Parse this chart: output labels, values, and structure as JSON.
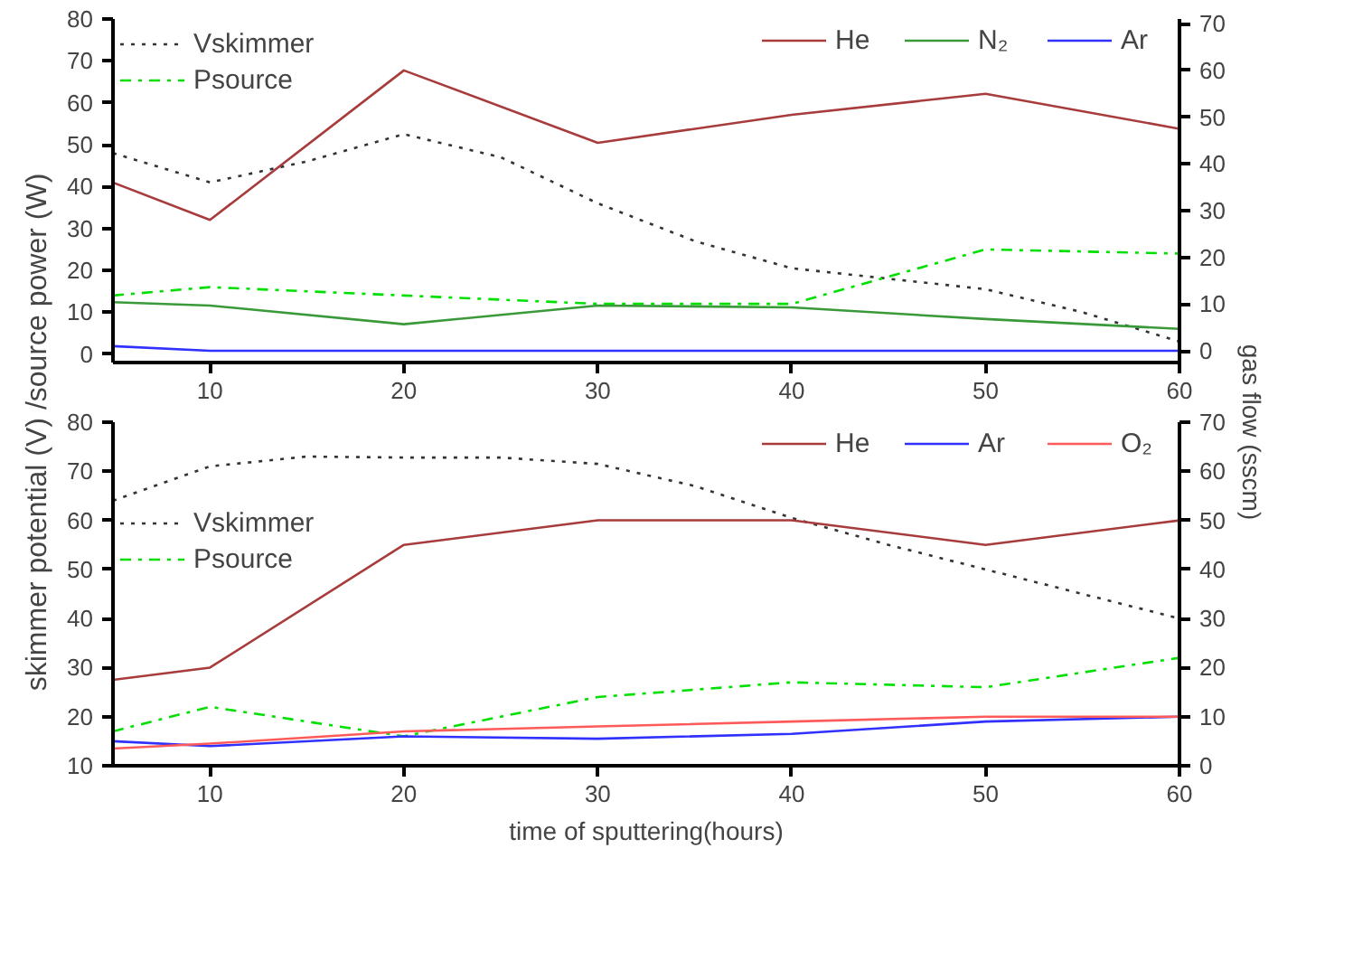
{
  "chart_data": [
    {
      "type": "line",
      "ylabel": "skimmer potential (V) /source power (W)",
      "y2label": "gas flow (sscm)",
      "x": [
        5,
        10,
        20,
        30,
        40,
        50,
        60
      ],
      "xlim": [
        5,
        60
      ],
      "xticks": [
        10,
        20,
        30,
        40,
        50,
        60
      ],
      "ylim": [
        -2,
        80
      ],
      "yticks": [
        0,
        10,
        20,
        30,
        40,
        50,
        60,
        70,
        80
      ],
      "y2lim": [
        -2.5,
        71
      ],
      "y2ticks": [
        0,
        10,
        20,
        30,
        40,
        50,
        60,
        70
      ],
      "legend": "top left",
      "grid": false,
      "series": [
        {
          "name": "Vskimmer",
          "color": "#333333",
          "line_style": "dotted",
          "x": [
            5,
            10,
            15,
            20,
            25,
            30,
            35,
            40,
            45,
            50,
            55,
            60
          ],
          "values": [
            48,
            41,
            46,
            52.5,
            47,
            36,
            27,
            20.5,
            18,
            15.5,
            10,
            3
          ]
        },
        {
          "name": "Psource",
          "color": "#00e000",
          "line_style": "dashdot",
          "values": [
            14,
            16,
            14,
            12,
            12,
            25,
            24
          ]
        },
        {
          "name": "He",
          "color": "#a83c3c",
          "axis": "y2",
          "values": [
            36,
            28,
            60,
            44.5,
            50.5,
            55,
            47.5
          ]
        },
        {
          "name": "N₂",
          "color": "#3a9a3a",
          "axis": "y2",
          "values": [
            10.4,
            9.7,
            5.7,
            9.7,
            9.3,
            6.8,
            4.7
          ]
        },
        {
          "name": "Ar",
          "color": "#3030ff",
          "axis": "y2",
          "values": [
            1,
            0,
            0,
            0,
            0,
            0,
            0
          ]
        }
      ]
    },
    {
      "type": "line",
      "xlabel": "time of sputtering(hours)",
      "x": [
        5,
        10,
        20,
        30,
        40,
        50,
        60
      ],
      "xlim": [
        5,
        60
      ],
      "xticks": [
        10,
        20,
        30,
        40,
        50,
        60
      ],
      "ylim": [
        10,
        80
      ],
      "yticks": [
        10,
        20,
        30,
        40,
        50,
        60,
        70,
        80
      ],
      "y2lim": [
        0,
        70
      ],
      "y2ticks": [
        0,
        10,
        20,
        30,
        40,
        50,
        60,
        70
      ],
      "legend": "left",
      "grid": false,
      "series": [
        {
          "name": "Vskimmer",
          "color": "#333333",
          "line_style": "dotted",
          "x": [
            5,
            10,
            15,
            20,
            25,
            30,
            35,
            40,
            45,
            50,
            55,
            60
          ],
          "values": [
            64,
            71,
            73,
            72.8,
            72.8,
            71.5,
            67,
            60.5,
            55,
            50,
            45,
            40
          ]
        },
        {
          "name": "Psource",
          "color": "#00e000",
          "line_style": "dashdot",
          "values": [
            17,
            22,
            16,
            24,
            27,
            26,
            32
          ]
        },
        {
          "name": "He",
          "color": "#a83c3c",
          "axis": "y2",
          "values": [
            17.5,
            20,
            45,
            50,
            50,
            45,
            50
          ]
        },
        {
          "name": "Ar",
          "color": "#3030ff",
          "axis": "y2",
          "values": [
            5,
            4,
            6,
            5.5,
            6.5,
            9,
            10
          ]
        },
        {
          "name": "O₂",
          "color": "#ff5a5a",
          "axis": "y2",
          "values": [
            3.5,
            4.5,
            7,
            8,
            9,
            10,
            10
          ]
        }
      ]
    }
  ]
}
